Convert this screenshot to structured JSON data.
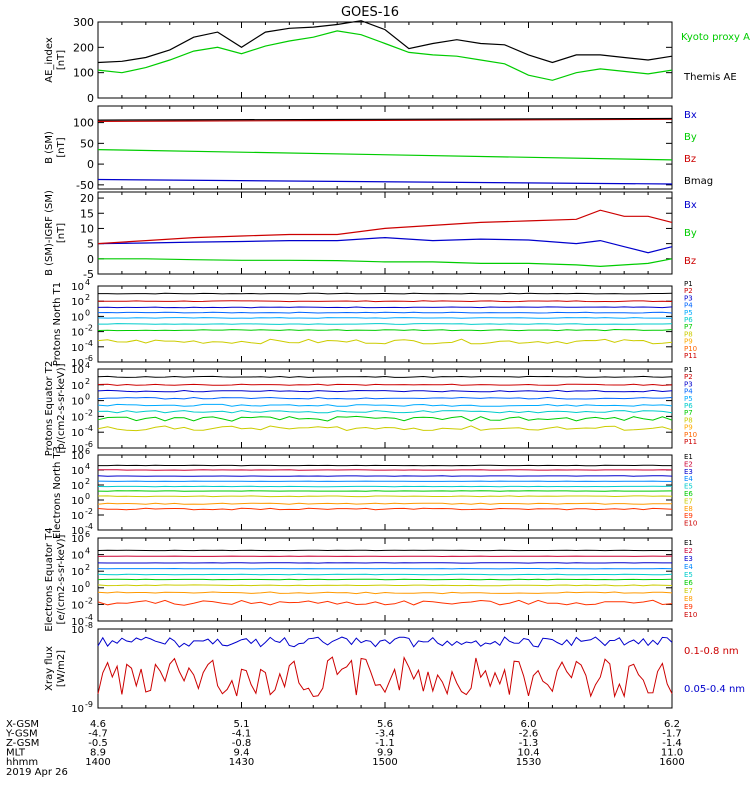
{
  "title": "GOES-16",
  "x_axis": {
    "rows": [
      {
        "label": "X-GSM",
        "values": [
          "4.6",
          "5.1",
          "5.6",
          "6.0",
          "6.2"
        ]
      },
      {
        "label": "Y-GSM",
        "values": [
          "-4.7",
          "-4.1",
          "-3.4",
          "-2.6",
          "-1.7"
        ]
      },
      {
        "label": "Z-GSM",
        "values": [
          "-0.5",
          "-0.8",
          "-1.1",
          "-1.3",
          "-1.4"
        ]
      },
      {
        "label": "MLT",
        "values": [
          "8.9",
          "9.4",
          "9.9",
          "10.4",
          "11.0"
        ]
      },
      {
        "label": "hhmm",
        "values": [
          "1400",
          "1430",
          "1500",
          "1530",
          "1600"
        ]
      }
    ],
    "date": "2019 Apr 26"
  },
  "colors": {
    "black": "#000000",
    "green": "#00cc00",
    "blue": "#0000cc",
    "red": "#cc0000"
  },
  "chart_data": [
    {
      "type": "line",
      "id": "ae",
      "ylabel": "AE_index [nT]",
      "ylim": [
        0,
        300
      ],
      "yticks": [
        "0",
        "100",
        "200",
        "300"
      ],
      "x": [
        1400,
        1405,
        1410,
        1415,
        1420,
        1425,
        1430,
        1435,
        1440,
        1445,
        1450,
        1455,
        1500,
        1505,
        1510,
        1515,
        1520,
        1525,
        1530,
        1535,
        1540,
        1545,
        1550,
        1555,
        1600
      ],
      "series": [
        {
          "name": "Themis AE",
          "color": "black",
          "values": [
            140,
            145,
            160,
            190,
            240,
            260,
            200,
            260,
            275,
            280,
            290,
            305,
            270,
            195,
            215,
            230,
            215,
            210,
            170,
            140,
            170,
            170,
            160,
            150,
            165
          ]
        },
        {
          "name": "Kyoto proxy AE",
          "color": "green",
          "values": [
            110,
            100,
            120,
            150,
            185,
            200,
            175,
            205,
            225,
            240,
            265,
            250,
            215,
            180,
            170,
            165,
            150,
            135,
            90,
            70,
            100,
            115,
            105,
            95,
            110
          ]
        }
      ]
    },
    {
      "type": "line",
      "id": "bsm",
      "ylabel": "B (SM) [nT]",
      "ylim": [
        -60,
        140
      ],
      "yticks": [
        "-50",
        "0",
        "50",
        "100"
      ],
      "x": [
        1400,
        1600
      ],
      "series": [
        {
          "name": "Bx",
          "color": "blue",
          "values": [
            -37,
            -48
          ]
        },
        {
          "name": "By",
          "color": "green",
          "values": [
            35,
            10
          ]
        },
        {
          "name": "Bz",
          "color": "red",
          "values": [
            103,
            108
          ]
        },
        {
          "name": "Bmag",
          "color": "black",
          "values": [
            106,
            110
          ]
        }
      ]
    },
    {
      "type": "line",
      "id": "bigrf",
      "ylabel": "B (SM)-IGRF (SM) [nT]",
      "ylim": [
        -5,
        22
      ],
      "yticks": [
        "-5",
        "0",
        "5",
        "10",
        "15",
        "20"
      ],
      "x": [
        1400,
        1410,
        1420,
        1430,
        1440,
        1450,
        1500,
        1510,
        1520,
        1530,
        1540,
        1545,
        1550,
        1555,
        1600
      ],
      "series": [
        {
          "name": "Bx",
          "color": "blue",
          "values": [
            5,
            5.2,
            5.5,
            5.7,
            6,
            6,
            7,
            6,
            6.5,
            6.2,
            5,
            6,
            4,
            2,
            4
          ]
        },
        {
          "name": "By",
          "color": "green",
          "values": [
            0,
            0,
            -0.3,
            -0.5,
            -0.5,
            -0.6,
            -1,
            -1,
            -1.5,
            -1.5,
            -2,
            -2.5,
            -2,
            -1.5,
            0
          ]
        },
        {
          "name": "Bz",
          "color": "red",
          "values": [
            5,
            6,
            7,
            7.5,
            8,
            8,
            10,
            11,
            12,
            12.5,
            13,
            16,
            14,
            14,
            12
          ]
        }
      ]
    },
    {
      "type": "line",
      "id": "pn",
      "ylabel": "Protons North T1",
      "ylim_log10": [
        -6,
        4
      ],
      "yticks": [
        "10-6",
        "10-4",
        "10-2",
        "100",
        "102",
        "104"
      ],
      "legend": [
        "P1",
        "P2",
        "P3",
        "P4",
        "P5",
        "P6",
        "P7",
        "P8",
        "P9",
        "P10",
        "P11"
      ]
    },
    {
      "type": "line",
      "id": "pe",
      "ylabel": "Protons Equator T2 [p/(cm2-s-sr-keV)]",
      "ylim_log10": [
        -6,
        4
      ],
      "yticks": [
        "10-6",
        "10-4",
        "10-2",
        "100",
        "102",
        "104"
      ],
      "legend": [
        "P1",
        "P2",
        "P3",
        "P4",
        "P5",
        "P6",
        "P7",
        "P8",
        "P9",
        "P10",
        "P11"
      ]
    },
    {
      "type": "line",
      "id": "en",
      "ylabel": "Electrons North T3",
      "ylim_log10": [
        -4,
        6
      ],
      "yticks": [
        "10-4",
        "10-2",
        "100",
        "102",
        "104",
        "106"
      ],
      "legend": [
        "E1",
        "E2",
        "E3",
        "E4",
        "E5",
        "E6",
        "E7",
        "E8",
        "E9",
        "E10"
      ]
    },
    {
      "type": "line",
      "id": "ee",
      "ylabel": "Electrons Equator T4 [e/(cm2-s-sr-keV)]",
      "ylim_log10": [
        -4,
        6
      ],
      "yticks": [
        "10-4",
        "10-2",
        "100",
        "102",
        "104",
        "106"
      ],
      "legend": [
        "E1",
        "E2",
        "E3",
        "E4",
        "E5",
        "E6",
        "E7",
        "E8",
        "E9",
        "E10"
      ]
    },
    {
      "type": "line",
      "id": "xray",
      "ylabel": "Xray flux [W/m2]",
      "ylim_log10": [
        -9,
        -8
      ],
      "yticks": [
        "10-9",
        "10-8"
      ],
      "legend": [
        "0.1-0.8 nm",
        "0.05-0.4 nm"
      ]
    }
  ]
}
